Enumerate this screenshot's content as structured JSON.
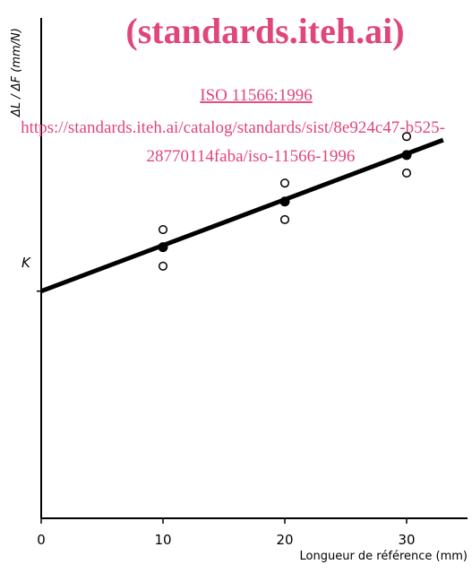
{
  "watermark": {
    "title": "(standards.iteh.ai)",
    "link": "ISO 11566:1996",
    "url_line1": "https://standards.iteh.ai/catalog/standards/sist/8e924c47-b525-",
    "url_line2": "28770114faba/iso-11566-1996",
    "color": "#e0457b"
  },
  "chart_data": {
    "type": "scatter",
    "xlabel": "Longueur de référence (mm)",
    "ylabel": "ΔL / ΔF  (mm/N)",
    "intercept_label": "K",
    "x_ticks": [
      {
        "value": 0,
        "label": "0"
      },
      {
        "value": 10,
        "label": "10"
      },
      {
        "value": 20,
        "label": "20"
      },
      {
        "value": 30,
        "label": "30"
      }
    ],
    "xlim": [
      0,
      35
    ],
    "ylim": [
      0,
      10
    ],
    "grid": false,
    "series": [
      {
        "kind": "measurement",
        "marker": "open-circle",
        "points": [
          {
            "x": 10,
            "y": 5.77
          },
          {
            "x": 10,
            "y": 5.04
          },
          {
            "x": 20,
            "y": 6.7
          },
          {
            "x": 20,
            "y": 5.97
          },
          {
            "x": 30,
            "y": 7.63
          },
          {
            "x": 30,
            "y": 6.9
          }
        ]
      },
      {
        "kind": "mean",
        "marker": "filled-circle",
        "points": [
          {
            "x": 10,
            "y": 5.42
          },
          {
            "x": 20,
            "y": 6.33
          },
          {
            "x": 30,
            "y": 7.26
          }
        ]
      }
    ],
    "fit_line": {
      "x0": 0,
      "y0": 4.54,
      "x1": 33,
      "y1": 7.56
    },
    "colors": {
      "ink": "#000000"
    }
  }
}
